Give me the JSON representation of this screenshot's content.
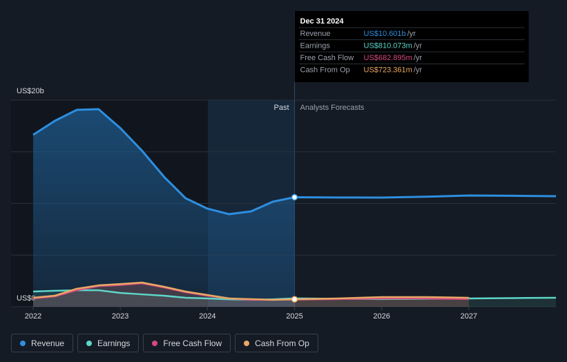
{
  "chart_data": {
    "type": "line",
    "x": [
      2022,
      2022.25,
      2022.5,
      2022.75,
      2023,
      2023.25,
      2023.5,
      2023.75,
      2024,
      2024.25,
      2024.5,
      2024.75,
      2025,
      2025.5,
      2026,
      2026.5,
      2027,
      2027.5,
      2028
    ],
    "series": [
      {
        "name": "Revenue",
        "color": "#2e8fe0",
        "values": [
          16.65,
          18.0,
          19.06,
          19.13,
          17.3,
          15.1,
          12.6,
          10.5,
          9.5,
          8.96,
          9.23,
          10.17,
          10.601,
          10.58,
          10.57,
          10.65,
          10.77,
          10.74,
          10.7
        ]
      },
      {
        "name": "Earnings",
        "color": "#5ed6c8",
        "values": [
          1.47,
          1.55,
          1.6,
          1.6,
          1.34,
          1.2,
          1.07,
          0.87,
          0.8,
          0.72,
          0.67,
          0.72,
          0.81,
          0.77,
          0.74,
          0.77,
          0.8,
          0.84,
          0.87
        ]
      },
      {
        "name": "Free Cash Flow",
        "color": "#d6497f",
        "values": [
          0.8,
          1.0,
          1.6,
          2.0,
          2.1,
          2.27,
          1.87,
          1.4,
          1.07,
          0.8,
          0.67,
          0.67,
          0.683,
          0.74,
          0.8,
          0.8,
          0.74,
          null,
          null
        ]
      },
      {
        "name": "Cash From Op",
        "color": "#e8a864",
        "values": [
          0.87,
          1.07,
          1.74,
          2.07,
          2.2,
          2.34,
          1.94,
          1.47,
          1.14,
          0.8,
          0.74,
          0.67,
          0.723,
          0.8,
          0.94,
          0.94,
          0.87,
          null,
          null
        ]
      }
    ],
    "xlim": [
      2022,
      2028
    ],
    "xticks": [
      2022,
      2023,
      2024,
      2025,
      2026,
      2027
    ],
    "ylim": [
      0,
      20
    ],
    "yticks": [
      {
        "value": 0,
        "label": "US$0"
      },
      {
        "value": 5,
        "label": null
      },
      {
        "value": 10,
        "label": null
      },
      {
        "value": 15,
        "label": null
      },
      {
        "value": 20,
        "label": "US$20b"
      }
    ],
    "grid": true,
    "past_label": "Past",
    "forecast_label": "Analysts Forecasts",
    "divider_x": 2025,
    "tooltip": {
      "date": "Dec 31 2024",
      "rows": [
        {
          "label": "Revenue",
          "value": "US$10.601b",
          "unit": "/yr"
        },
        {
          "label": "Earnings",
          "value": "US$810.073m",
          "unit": "/yr"
        },
        {
          "label": "Free Cash Flow",
          "value": "US$682.895m",
          "unit": "/yr"
        },
        {
          "label": "Cash From Op",
          "value": "US$723.361m",
          "unit": "/yr"
        }
      ]
    }
  }
}
